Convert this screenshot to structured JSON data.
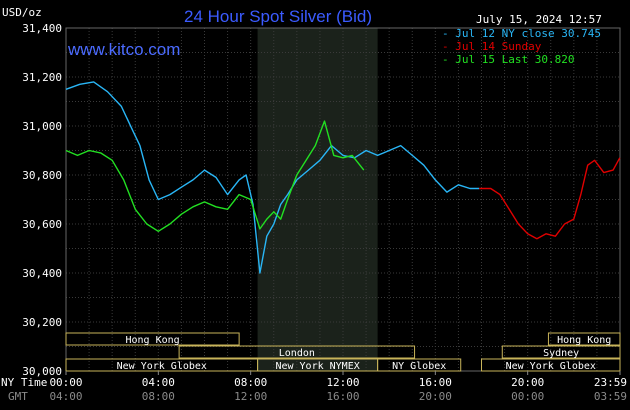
{
  "chart_data": {
    "type": "line",
    "title": "24 Hour Spot Silver (Bid)",
    "timestamp": "July 15, 2024 12:57",
    "site": "www.kitco.com",
    "ylabel": "USD/oz",
    "ylim": [
      30.0,
      31.4
    ],
    "yticks": [
      "31,400",
      "31,200",
      "31,000",
      "30,800",
      "30,600",
      "30,400",
      "30,200",
      "30,000"
    ],
    "ytick_values": [
      31.4,
      31.2,
      31.0,
      30.8,
      30.6,
      30.4,
      30.2,
      30.0
    ],
    "xlim": [
      0,
      24
    ],
    "x_tz_labels": [
      "NY Time",
      "GMT"
    ],
    "xticks_ny": [
      "00:00",
      "04:00",
      "08:00",
      "12:00",
      "16:00",
      "20:00",
      "23:59"
    ],
    "xticks_gmt": [
      "04:00",
      "08:00",
      "12:00",
      "16:00",
      "20:00",
      "00:00",
      "03:59"
    ],
    "xtick_hours": [
      0,
      4,
      8,
      12,
      16,
      20,
      24
    ],
    "grid": true,
    "shaded_hours": [
      8.3,
      13.5
    ],
    "legend": [
      {
        "label": "Jul 12 NY close 30.745",
        "color": "#29b6f6"
      },
      {
        "label": "Jul 14 Sunday",
        "color": "#e00000"
      },
      {
        "label": "Jul 15 Last 30.820",
        "color": "#22e022"
      }
    ],
    "series": [
      {
        "name": "Jul 12 NY close 30.745",
        "color": "#29b6f6",
        "x": [
          0,
          0.6,
          1.2,
          1.8,
          2.4,
          2.9,
          3.2,
          3.6,
          4.0,
          4.5,
          5.0,
          5.5,
          6.0,
          6.5,
          7.0,
          7.5,
          7.8,
          8.1,
          8.4,
          8.7,
          9.0,
          9.3,
          9.6,
          10.0,
          10.5,
          11.0,
          11.5,
          12.0,
          12.5,
          13.0,
          13.5,
          14.0,
          14.5,
          15.0,
          15.5,
          16.0,
          16.5,
          17.0,
          17.5,
          17.9
        ],
        "y": [
          31.15,
          31.17,
          31.18,
          31.14,
          31.08,
          30.98,
          30.92,
          30.78,
          30.7,
          30.72,
          30.75,
          30.78,
          30.82,
          30.79,
          30.72,
          30.78,
          30.8,
          30.68,
          30.4,
          30.55,
          30.6,
          30.68,
          30.72,
          30.78,
          30.82,
          30.86,
          30.92,
          30.88,
          30.87,
          30.9,
          30.88,
          30.9,
          30.92,
          30.88,
          30.84,
          30.78,
          30.73,
          30.76,
          30.745,
          30.745
        ]
      },
      {
        "name": "Jul 14 Sunday",
        "color": "#e00000",
        "x": [
          17.9,
          18.4,
          18.8,
          19.2,
          19.6,
          20.0,
          20.4,
          20.8,
          21.2,
          21.6,
          22.0,
          22.3,
          22.6,
          22.9,
          23.3,
          23.7,
          23.99
        ],
        "y": [
          30.745,
          30.745,
          30.72,
          30.66,
          30.6,
          30.56,
          30.54,
          30.56,
          30.55,
          30.6,
          30.62,
          30.72,
          30.84,
          30.86,
          30.81,
          30.82,
          30.87
        ]
      },
      {
        "name": "Jul 15 Last 30.820",
        "color": "#22e022",
        "x": [
          0,
          0.5,
          1.0,
          1.5,
          2.0,
          2.5,
          3.0,
          3.5,
          4.0,
          4.5,
          5.0,
          5.5,
          6.0,
          6.5,
          7.0,
          7.5,
          8.0,
          8.4,
          8.7,
          9.0,
          9.3,
          9.6,
          10.0,
          10.4,
          10.8,
          11.2,
          11.6,
          12.0,
          12.4,
          12.9
        ],
        "y": [
          30.9,
          30.88,
          30.9,
          30.89,
          30.86,
          30.78,
          30.66,
          30.6,
          30.57,
          30.6,
          30.64,
          30.67,
          30.69,
          30.67,
          30.66,
          30.72,
          30.7,
          30.58,
          30.62,
          30.65,
          30.62,
          30.7,
          30.8,
          30.86,
          30.92,
          31.02,
          30.88,
          30.87,
          30.88,
          30.82
        ]
      }
    ],
    "sessions": [
      {
        "label": "Hong Kong",
        "start": 0,
        "end": 7.5,
        "row": 0
      },
      {
        "label": "London",
        "start": 4.9,
        "end": 15.1,
        "row": 1
      },
      {
        "label": "New York Globex",
        "start": 0,
        "end": 8.3,
        "row": 2
      },
      {
        "label": "New York NYMEX",
        "start": 8.3,
        "end": 13.5,
        "row": 2
      },
      {
        "label": "NY Globex",
        "start": 13.5,
        "end": 17.1,
        "row": 2
      },
      {
        "label": "Hong Kong",
        "start": 20.9,
        "end": 24,
        "row": 0
      },
      {
        "label": "Sydney",
        "start": 18.9,
        "end": 24,
        "row": 1
      },
      {
        "label": "New York Globex",
        "start": 18.0,
        "end": 24,
        "row": 2
      }
    ]
  }
}
